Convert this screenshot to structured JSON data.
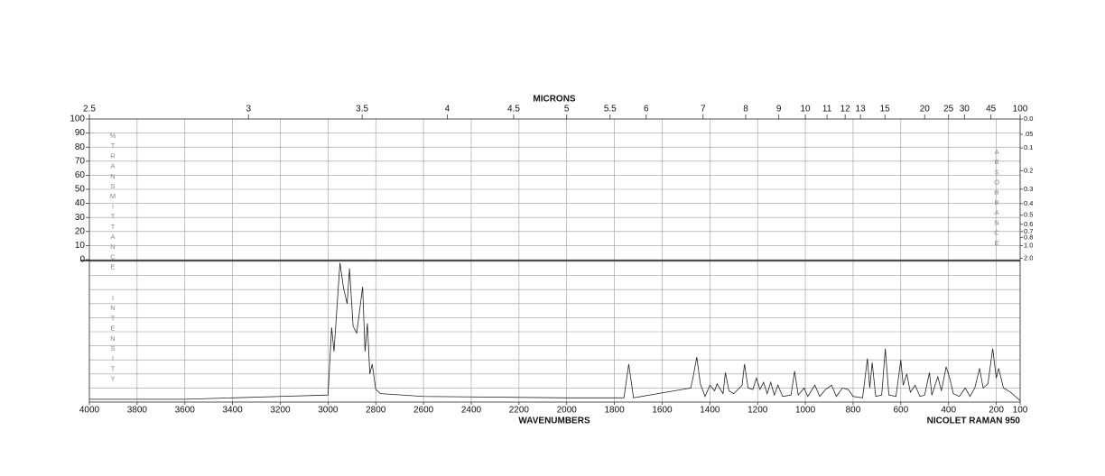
{
  "chart_data": {
    "type": "line",
    "top_axis_label": "MICRONS",
    "x_label": "WAVENUMBERS",
    "footer": "NICOLET RAMAN 950",
    "y_label": "%TRANSMITTANCE",
    "lower_y_label": "INTENSITY",
    "right_label": "ABSORBANCE",
    "xlim": [
      4000,
      100
    ],
    "xticks": [
      4000,
      3800,
      3600,
      3400,
      3200,
      3000,
      2800,
      2600,
      2400,
      2200,
      2000,
      1800,
      1600,
      1400,
      1200,
      1000,
      800,
      600,
      400,
      200,
      100
    ],
    "ylim": [
      0,
      100
    ],
    "yticks": [
      0,
      10,
      20,
      30,
      40,
      50,
      60,
      70,
      80,
      90,
      100
    ],
    "micron_ticks": [
      2.5,
      3,
      3.5,
      4,
      4.5,
      5,
      5.5,
      6,
      7,
      8,
      9,
      10,
      11,
      12,
      13,
      15,
      20,
      25,
      30,
      45,
      100
    ],
    "absorbance_ticks": [
      {
        "value": 0,
        "label": "0.0"
      },
      {
        "value": 0.05,
        "label": ".05"
      },
      0.1,
      0.2,
      0.3,
      0.4,
      0.5,
      0.6,
      0.7,
      0.8,
      {
        "value": 1,
        "label": "1.0"
      },
      {
        "value": 2,
        "label": "2.0"
      }
    ],
    "intensity_lim": [
      0,
      100
    ],
    "grid": true,
    "color": "#222222",
    "x": [
      4000,
      3600,
      3200,
      3000,
      2985,
      2975,
      2950,
      2935,
      2920,
      2910,
      2895,
      2880,
      2870,
      2855,
      2845,
      2835,
      2825,
      2815,
      2800,
      2780,
      2600,
      2000,
      1760,
      1740,
      1720,
      1480,
      1470,
      1455,
      1440,
      1420,
      1400,
      1380,
      1370,
      1345,
      1335,
      1320,
      1300,
      1265,
      1255,
      1240,
      1220,
      1205,
      1190,
      1175,
      1160,
      1145,
      1130,
      1115,
      1095,
      1060,
      1045,
      1030,
      1005,
      990,
      960,
      940,
      915,
      890,
      870,
      845,
      820,
      800,
      760,
      740,
      730,
      720,
      705,
      680,
      665,
      650,
      620,
      600,
      590,
      575,
      560,
      540,
      520,
      500,
      480,
      470,
      445,
      430,
      410,
      395,
      380,
      355,
      330,
      310,
      290,
      270,
      255,
      235,
      215,
      200,
      190,
      170,
      140,
      120,
      100
    ],
    "values": [
      2,
      2,
      4,
      5,
      53,
      36,
      99,
      81,
      70,
      95,
      54,
      49,
      62,
      82,
      36,
      56,
      20,
      27,
      9,
      6,
      4,
      3,
      3,
      27,
      3,
      10,
      18,
      32,
      13,
      4,
      12,
      8,
      13,
      6,
      21,
      8,
      6,
      12,
      27,
      10,
      9,
      17,
      9,
      14,
      6,
      14,
      5,
      12,
      4,
      5,
      22,
      5,
      10,
      4,
      12,
      4,
      9,
      12,
      4,
      10,
      9,
      4,
      3,
      31,
      10,
      28,
      4,
      5,
      38,
      5,
      4,
      30,
      12,
      20,
      7,
      12,
      4,
      5,
      21,
      5,
      18,
      8,
      25,
      17,
      6,
      4,
      10,
      4,
      10,
      24,
      10,
      13,
      38,
      17,
      24,
      10,
      7,
      4,
      1
    ]
  }
}
